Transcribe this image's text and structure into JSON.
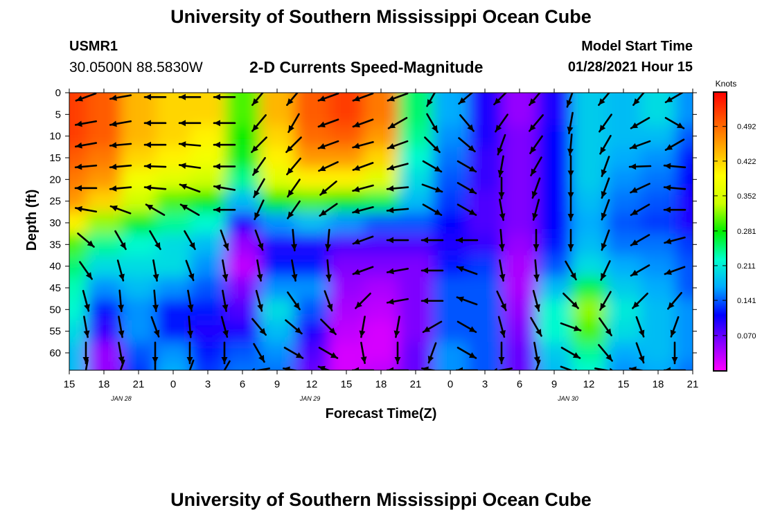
{
  "header": {
    "title": "University of Southern Mississippi Ocean Cube",
    "station_id": "USMR1",
    "station_coords": "30.0500N 88.5830W",
    "subtitle": "2-D Currents Speed-Magnitude",
    "model_start_label": "Model Start Time",
    "model_start_value": "01/28/2021 Hour 15"
  },
  "footer": {
    "title": "University of Southern Mississippi Ocean Cube"
  },
  "chart_data": {
    "type": "heatmap",
    "title": "2-D Currents Speed-Magnitude",
    "xlabel": "Forecast Time(Z)",
    "ylabel": "Depth (ft)",
    "x_tick_labels": [
      "15",
      "18",
      "21",
      "0",
      "3",
      "6",
      "9",
      "12",
      "15",
      "18",
      "21",
      "0",
      "3",
      "6",
      "9",
      "12",
      "15",
      "18",
      "21"
    ],
    "date_labels": [
      {
        "label": "JAN  28",
        "tick_index": 1.5
      },
      {
        "label": "JAN  29",
        "tick_index": 6.95
      },
      {
        "label": "JAN  30",
        "tick_index": 14.4
      }
    ],
    "y_ticks": [
      0,
      5,
      10,
      15,
      20,
      25,
      30,
      35,
      40,
      45,
      50,
      55,
      60
    ],
    "ylim": [
      0,
      64
    ],
    "colorbar": {
      "label": "Knots",
      "ticks": [
        0.07,
        0.141,
        0.211,
        0.281,
        0.352,
        0.422,
        0.492
      ],
      "tick_labels": [
        "0.070",
        "0.141",
        "0.211",
        "0.281",
        "0.352",
        "0.422",
        "0.492"
      ],
      "range": [
        0.0,
        0.56
      ],
      "colors": [
        "#ff00ff",
        "#8800ff",
        "#0000ff",
        "#00aaff",
        "#00ffcc",
        "#00ee00",
        "#ccff00",
        "#ffff00",
        "#ffaa00",
        "#ff5500",
        "#ff0000"
      ]
    },
    "grid": false,
    "depths_ft": [
      0,
      5,
      10,
      15,
      20,
      25,
      30,
      35,
      40,
      45,
      50,
      55,
      60,
      64
    ],
    "times_hr": [
      0,
      3,
      6,
      9,
      12,
      15,
      18,
      21,
      24,
      27,
      30,
      33,
      36,
      39,
      42,
      45,
      48,
      51,
      54
    ],
    "speed_knots": [
      [
        0.52,
        0.5,
        0.44,
        0.42,
        0.42,
        0.3,
        0.44,
        0.5,
        0.52,
        0.48,
        0.25,
        0.17,
        0.1,
        0.05,
        0.1,
        0.19,
        0.18,
        0.2,
        0.16
      ],
      [
        0.52,
        0.5,
        0.44,
        0.42,
        0.42,
        0.3,
        0.44,
        0.5,
        0.52,
        0.48,
        0.25,
        0.17,
        0.1,
        0.05,
        0.1,
        0.19,
        0.18,
        0.2,
        0.16
      ],
      [
        0.52,
        0.5,
        0.44,
        0.42,
        0.4,
        0.28,
        0.42,
        0.49,
        0.5,
        0.46,
        0.24,
        0.16,
        0.1,
        0.06,
        0.11,
        0.19,
        0.18,
        0.18,
        0.14
      ],
      [
        0.5,
        0.48,
        0.42,
        0.4,
        0.38,
        0.27,
        0.4,
        0.46,
        0.46,
        0.42,
        0.22,
        0.15,
        0.09,
        0.06,
        0.11,
        0.19,
        0.17,
        0.16,
        0.12
      ],
      [
        0.48,
        0.46,
        0.38,
        0.36,
        0.34,
        0.24,
        0.36,
        0.4,
        0.4,
        0.36,
        0.2,
        0.14,
        0.09,
        0.06,
        0.11,
        0.19,
        0.16,
        0.15,
        0.11
      ],
      [
        0.46,
        0.42,
        0.34,
        0.3,
        0.28,
        0.18,
        0.28,
        0.3,
        0.28,
        0.26,
        0.18,
        0.13,
        0.08,
        0.06,
        0.11,
        0.18,
        0.15,
        0.14,
        0.1
      ],
      [
        0.4,
        0.32,
        0.27,
        0.24,
        0.22,
        0.1,
        0.16,
        0.18,
        0.16,
        0.14,
        0.14,
        0.11,
        0.08,
        0.06,
        0.11,
        0.17,
        0.14,
        0.13,
        0.1
      ],
      [
        0.3,
        0.24,
        0.22,
        0.2,
        0.18,
        0.05,
        0.1,
        0.1,
        0.08,
        0.08,
        0.08,
        0.1,
        0.09,
        0.05,
        0.12,
        0.18,
        0.15,
        0.15,
        0.13
      ],
      [
        0.25,
        0.2,
        0.2,
        0.2,
        0.16,
        0.03,
        0.12,
        0.12,
        0.06,
        0.06,
        0.06,
        0.12,
        0.13,
        0.04,
        0.14,
        0.2,
        0.17,
        0.16,
        0.14
      ],
      [
        0.23,
        0.16,
        0.18,
        0.16,
        0.14,
        0.06,
        0.16,
        0.16,
        0.05,
        0.04,
        0.06,
        0.14,
        0.14,
        0.04,
        0.18,
        0.26,
        0.19,
        0.17,
        0.14
      ],
      [
        0.22,
        0.12,
        0.16,
        0.12,
        0.12,
        0.08,
        0.2,
        0.14,
        0.04,
        0.03,
        0.06,
        0.14,
        0.14,
        0.05,
        0.22,
        0.32,
        0.21,
        0.18,
        0.16
      ],
      [
        0.2,
        0.09,
        0.16,
        0.12,
        0.1,
        0.1,
        0.18,
        0.1,
        0.03,
        0.02,
        0.06,
        0.14,
        0.14,
        0.06,
        0.22,
        0.3,
        0.2,
        0.18,
        0.16
      ],
      [
        0.18,
        0.05,
        0.14,
        0.16,
        0.12,
        0.14,
        0.16,
        0.08,
        0.02,
        0.02,
        0.07,
        0.16,
        0.14,
        0.07,
        0.19,
        0.24,
        0.17,
        0.18,
        0.16
      ],
      [
        0.18,
        0.05,
        0.13,
        0.17,
        0.13,
        0.15,
        0.15,
        0.07,
        0.02,
        0.03,
        0.07,
        0.16,
        0.14,
        0.07,
        0.18,
        0.22,
        0.16,
        0.17,
        0.15
      ]
    ],
    "vector_depths_ft": [
      1,
      7,
      12,
      17,
      22,
      27,
      34,
      41,
      48,
      54,
      60,
      64
    ],
    "vector_directions_deg": [
      [
        250,
        260,
        270,
        270,
        270,
        220,
        220,
        250,
        250,
        250,
        210,
        230,
        225,
        220,
        200,
        220,
        220,
        240,
        250
      ],
      [
        260,
        260,
        270,
        270,
        270,
        220,
        210,
        250,
        250,
        240,
        150,
        140,
        215,
        220,
        190,
        215,
        240,
        120,
        110
      ],
      [
        260,
        265,
        270,
        275,
        270,
        225,
        225,
        250,
        255,
        250,
        135,
        130,
        200,
        215,
        185,
        210,
        250,
        240,
        240
      ],
      [
        265,
        265,
        272,
        278,
        270,
        215,
        220,
        245,
        250,
        255,
        120,
        120,
        190,
        210,
        180,
        200,
        268,
        275,
        270
      ],
      [
        270,
        265,
        275,
        290,
        280,
        210,
        215,
        230,
        255,
        265,
        110,
        120,
        180,
        200,
        180,
        200,
        245,
        275,
        270
      ],
      [
        280,
        290,
        300,
        300,
        270,
        205,
        215,
        235,
        255,
        265,
        120,
        120,
        170,
        195,
        180,
        200,
        240,
        270,
        280
      ],
      [
        130,
        150,
        150,
        150,
        160,
        160,
        175,
        185,
        250,
        270,
        270,
        270,
        175,
        180,
        180,
        200,
        240,
        255,
        260
      ],
      [
        145,
        165,
        170,
        160,
        170,
        170,
        170,
        175,
        250,
        260,
        270,
        290,
        170,
        175,
        150,
        205,
        240,
        250,
        250
      ],
      [
        165,
        175,
        175,
        170,
        170,
        165,
        145,
        160,
        225,
        260,
        270,
        290,
        155,
        165,
        135,
        210,
        225,
        220,
        230
      ],
      [
        170,
        170,
        160,
        175,
        165,
        140,
        130,
        135,
        190,
        190,
        240,
        120,
        165,
        150,
        110,
        145,
        160,
        200,
        210
      ],
      [
        180,
        170,
        180,
        180,
        180,
        150,
        120,
        120,
        170,
        180,
        200,
        120,
        180,
        170,
        120,
        140,
        160,
        180,
        220
      ],
      [
        190,
        200,
        180,
        200,
        210,
        260,
        280,
        290,
        270,
        270,
        280,
        270,
        260,
        200,
        110,
        100,
        280,
        270,
        270
      ]
    ]
  }
}
